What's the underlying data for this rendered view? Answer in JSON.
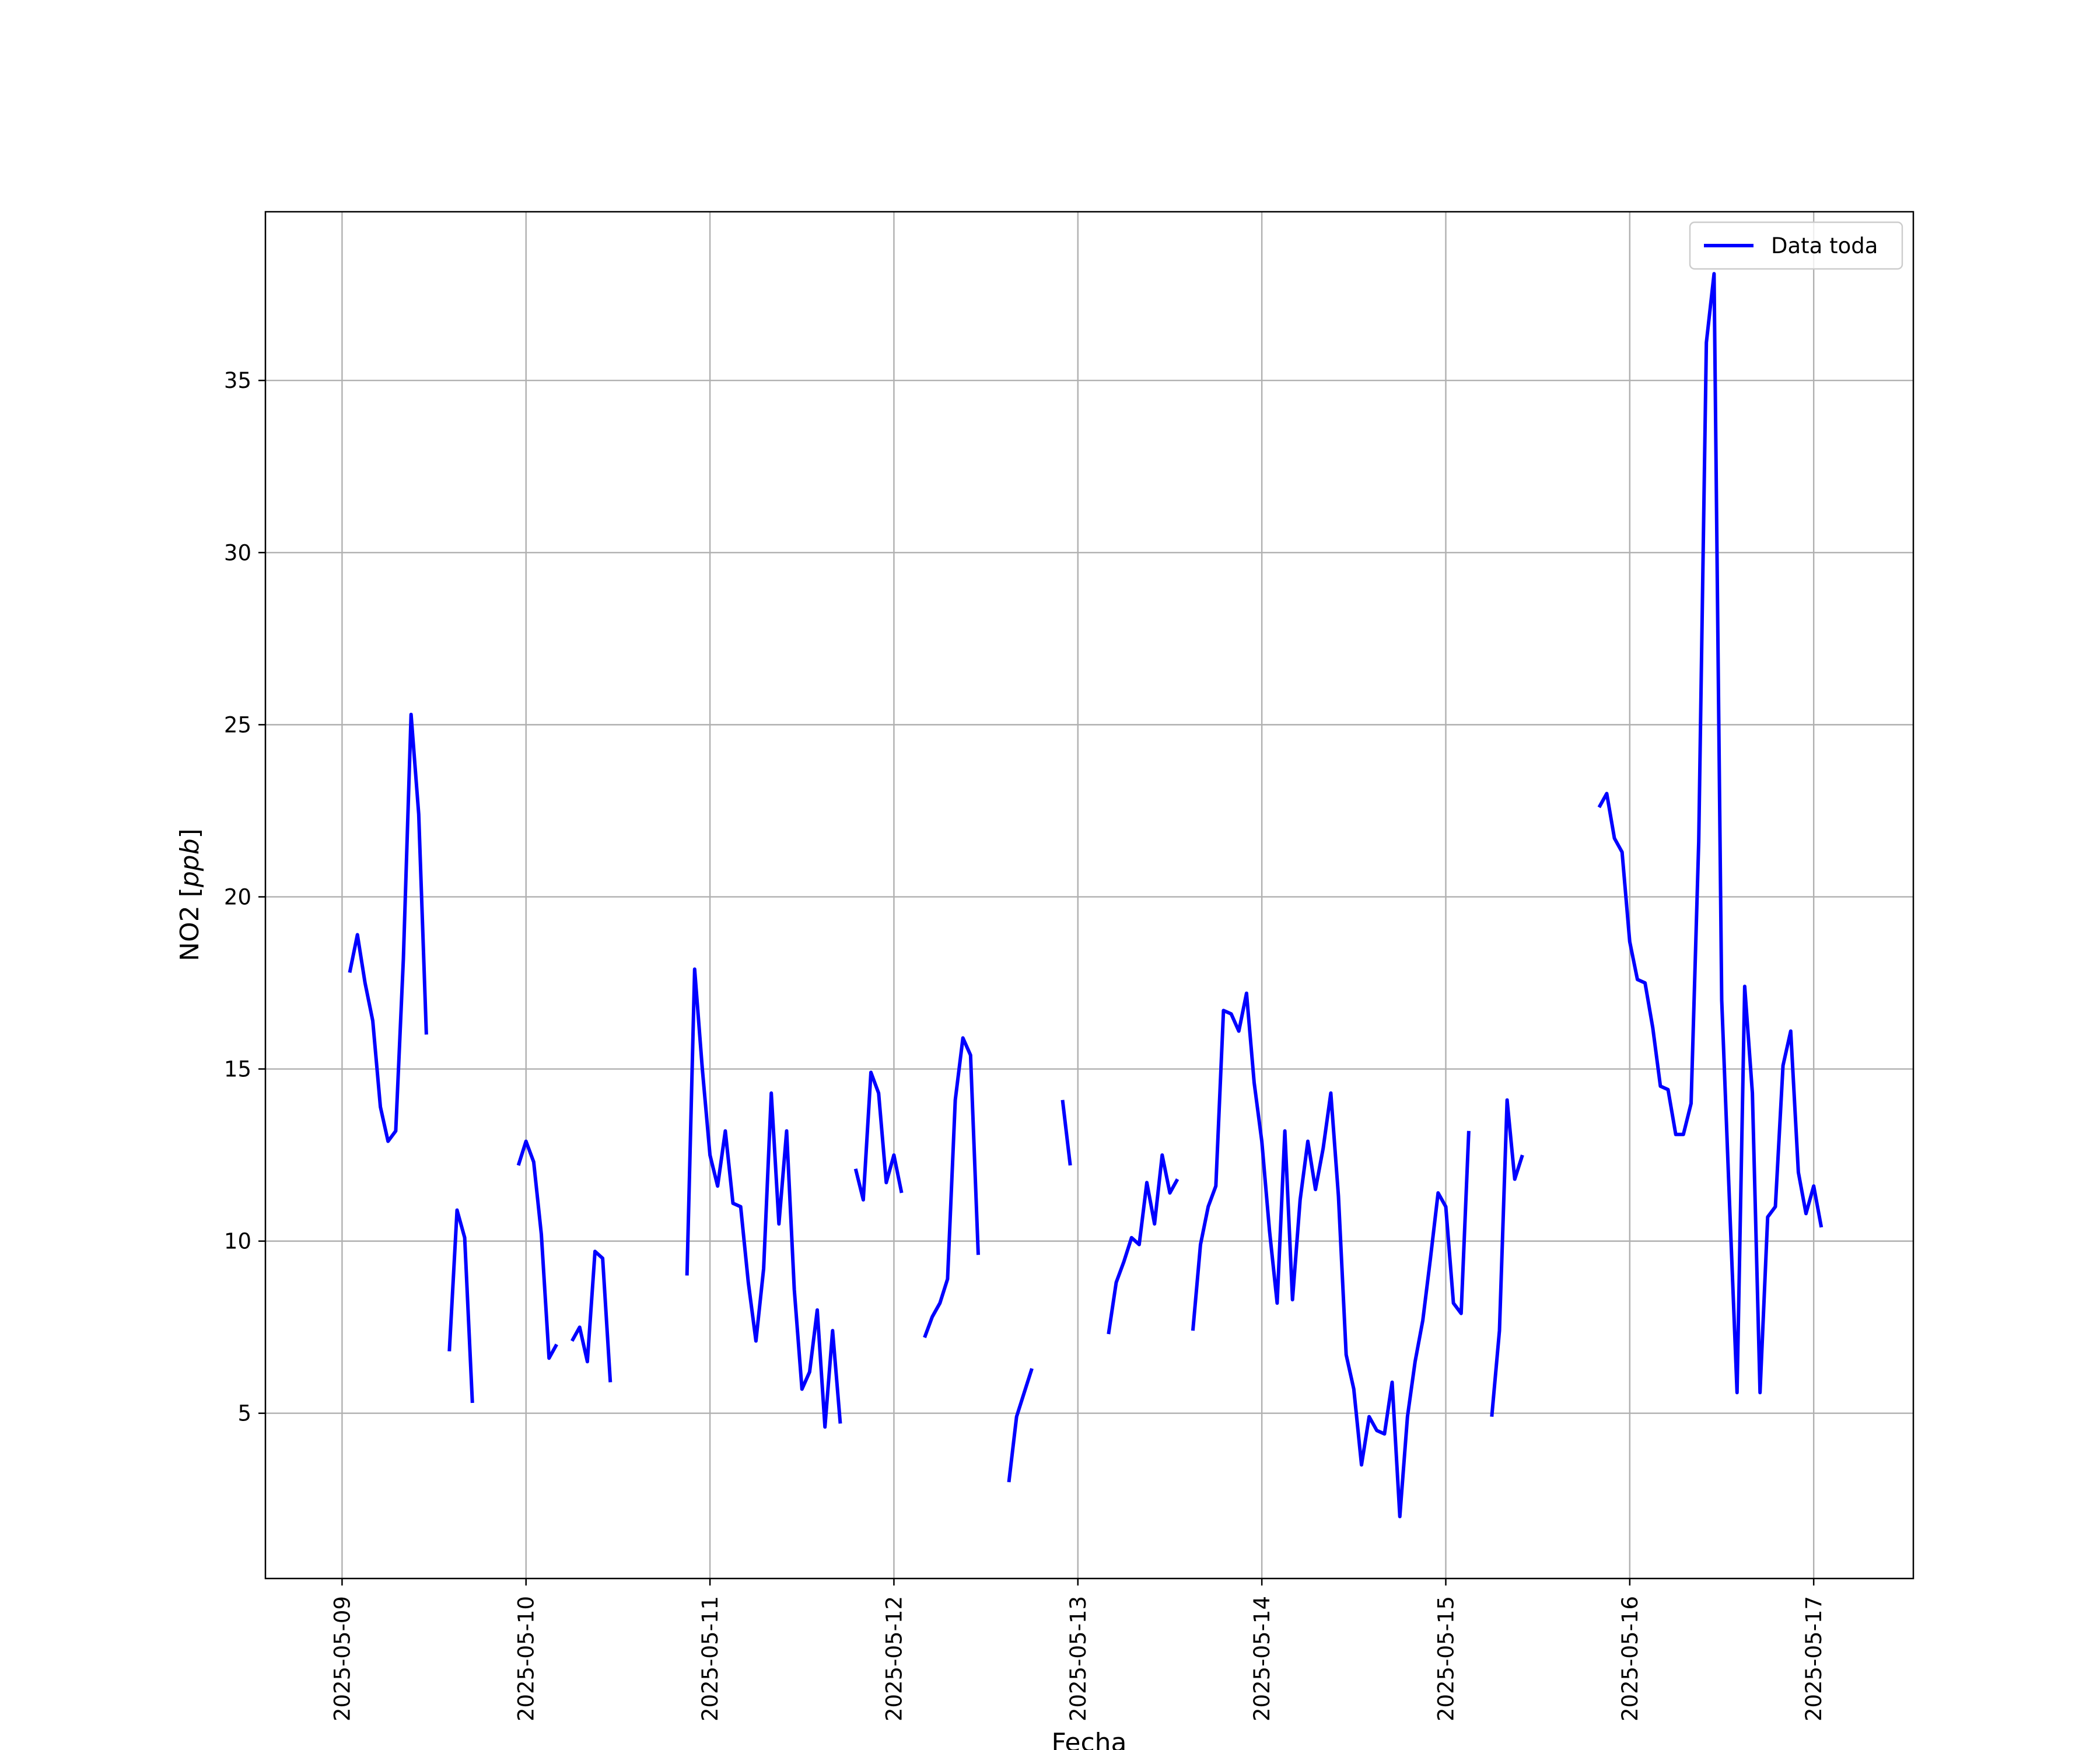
{
  "chart_data": {
    "type": "line",
    "xlabel": "Fecha",
    "ylabel": "NO2 [ppb]",
    "ylabel_main": "NO2 [",
    "ylabel_unit": "ppb",
    "ylabel_close": "]",
    "x_type": "date",
    "xlim": [
      "2025-05-08T14:00",
      "2025-05-17T13:00"
    ],
    "ylim": [
      0.2,
      39.9
    ],
    "x_ticks": [
      "2025-05-09",
      "2025-05-10",
      "2025-05-11",
      "2025-05-12",
      "2025-05-13",
      "2025-05-14",
      "2025-05-15",
      "2025-05-16",
      "2025-05-17"
    ],
    "y_ticks": [
      5,
      10,
      15,
      20,
      25,
      30,
      35
    ],
    "grid": true,
    "legend": {
      "position": "upper right",
      "entries": [
        "Data toda"
      ]
    },
    "series": [
      {
        "name": "Data toda",
        "color": "#0000ff",
        "segments": [
          [
            [
              "2025-05-09T01:00",
              17.8
            ],
            [
              "2025-05-09T02:00",
              18.9
            ],
            [
              "2025-05-09T03:00",
              17.5
            ],
            [
              "2025-05-09T04:00",
              16.4
            ],
            [
              "2025-05-09T05:00",
              13.9
            ],
            [
              "2025-05-09T06:00",
              12.9
            ],
            [
              "2025-05-09T07:00",
              13.2
            ],
            [
              "2025-05-09T08:00",
              18.2
            ],
            [
              "2025-05-09T09:00",
              25.3
            ],
            [
              "2025-05-09T10:00",
              22.4
            ],
            [
              "2025-05-09T11:00",
              16.0
            ]
          ],
          [
            [
              "2025-05-09T14:00",
              6.8
            ],
            [
              "2025-05-09T15:00",
              10.9
            ],
            [
              "2025-05-09T16:00",
              10.1
            ],
            [
              "2025-05-09T17:00",
              5.3
            ]
          ],
          [
            [
              "2025-05-09T23:00",
              12.2
            ],
            [
              "2025-05-10T00:00",
              12.9
            ],
            [
              "2025-05-10T01:00",
              12.3
            ],
            [
              "2025-05-10T02:00",
              10.2
            ],
            [
              "2025-05-10T03:00",
              6.6
            ],
            [
              "2025-05-10T04:00",
              7.0
            ]
          ],
          [
            [
              "2025-05-10T06:00",
              7.1
            ],
            [
              "2025-05-10T07:00",
              7.5
            ],
            [
              "2025-05-10T08:00",
              6.5
            ],
            [
              "2025-05-10T09:00",
              9.7
            ],
            [
              "2025-05-10T10:00",
              9.5
            ],
            [
              "2025-05-10T11:00",
              5.9
            ]
          ],
          [
            [
              "2025-05-10T21:00",
              9.0
            ],
            [
              "2025-05-10T22:00",
              17.9
            ],
            [
              "2025-05-10T23:00",
              15.0
            ],
            [
              "2025-05-11T00:00",
              12.5
            ],
            [
              "2025-05-11T01:00",
              11.6
            ],
            [
              "2025-05-11T02:00",
              13.2
            ],
            [
              "2025-05-11T03:00",
              11.1
            ],
            [
              "2025-05-11T04:00",
              11.0
            ],
            [
              "2025-05-11T05:00",
              8.8
            ],
            [
              "2025-05-11T06:00",
              7.1
            ],
            [
              "2025-05-11T07:00",
              9.2
            ],
            [
              "2025-05-11T08:00",
              14.3
            ],
            [
              "2025-05-11T09:00",
              10.5
            ],
            [
              "2025-05-11T10:00",
              13.2
            ],
            [
              "2025-05-11T11:00",
              8.6
            ],
            [
              "2025-05-11T12:00",
              5.7
            ],
            [
              "2025-05-11T13:00",
              6.2
            ],
            [
              "2025-05-11T14:00",
              8.0
            ],
            [
              "2025-05-11T15:00",
              4.6
            ],
            [
              "2025-05-11T16:00",
              7.4
            ],
            [
              "2025-05-11T17:00",
              4.7
            ]
          ],
          [
            [
              "2025-05-11T19:00",
              12.1
            ],
            [
              "2025-05-11T20:00",
              11.2
            ],
            [
              "2025-05-11T21:00",
              14.9
            ],
            [
              "2025-05-11T22:00",
              14.3
            ],
            [
              "2025-05-11T23:00",
              11.7
            ],
            [
              "2025-05-12T00:00",
              12.5
            ],
            [
              "2025-05-12T01:00",
              11.4
            ]
          ],
          [
            [
              "2025-05-12T04:00",
              7.2
            ],
            [
              "2025-05-12T05:00",
              7.8
            ],
            [
              "2025-05-12T06:00",
              8.2
            ],
            [
              "2025-05-12T07:00",
              8.9
            ],
            [
              "2025-05-12T08:00",
              14.1
            ],
            [
              "2025-05-12T09:00",
              15.9
            ],
            [
              "2025-05-12T10:00",
              15.4
            ],
            [
              "2025-05-12T11:00",
              9.6
            ]
          ],
          [
            [
              "2025-05-12T15:00",
              3.0
            ],
            [
              "2025-05-12T16:00",
              4.9
            ],
            [
              "2025-05-12T17:00",
              5.6
            ],
            [
              "2025-05-12T18:00",
              6.3
            ]
          ],
          [
            [
              "2025-05-12T22:00",
              14.1
            ],
            [
              "2025-05-12T23:00",
              12.2
            ]
          ],
          [
            [
              "2025-05-13T04:00",
              7.3
            ],
            [
              "2025-05-13T05:00",
              8.8
            ],
            [
              "2025-05-13T06:00",
              9.4
            ],
            [
              "2025-05-13T07:00",
              10.1
            ],
            [
              "2025-05-13T08:00",
              9.9
            ],
            [
              "2025-05-13T09:00",
              11.7
            ],
            [
              "2025-05-13T10:00",
              10.5
            ],
            [
              "2025-05-13T11:00",
              12.5
            ],
            [
              "2025-05-13T12:00",
              11.4
            ],
            [
              "2025-05-13T13:00",
              11.8
            ]
          ],
          [
            [
              "2025-05-13T15:00",
              7.4
            ],
            [
              "2025-05-13T16:00",
              9.9
            ],
            [
              "2025-05-13T17:00",
              11.0
            ],
            [
              "2025-05-13T18:00",
              11.6
            ],
            [
              "2025-05-13T19:00",
              16.7
            ],
            [
              "2025-05-13T20:00",
              16.6
            ],
            [
              "2025-05-13T21:00",
              16.1
            ],
            [
              "2025-05-13T22:00",
              17.2
            ],
            [
              "2025-05-13T23:00",
              14.6
            ],
            [
              "2025-05-14T00:00",
              12.9
            ],
            [
              "2025-05-14T01:00",
              10.3
            ],
            [
              "2025-05-14T02:00",
              8.2
            ],
            [
              "2025-05-14T03:00",
              13.2
            ],
            [
              "2025-05-14T04:00",
              8.3
            ],
            [
              "2025-05-14T05:00",
              11.2
            ],
            [
              "2025-05-14T06:00",
              12.9
            ],
            [
              "2025-05-14T07:00",
              11.5
            ],
            [
              "2025-05-14T08:00",
              12.7
            ],
            [
              "2025-05-14T09:00",
              14.3
            ],
            [
              "2025-05-14T10:00",
              11.3
            ],
            [
              "2025-05-14T11:00",
              6.7
            ],
            [
              "2025-05-14T12:00",
              5.7
            ],
            [
              "2025-05-14T13:00",
              3.5
            ],
            [
              "2025-05-14T14:00",
              4.9
            ],
            [
              "2025-05-14T15:00",
              4.5
            ],
            [
              "2025-05-14T16:00",
              4.4
            ],
            [
              "2025-05-14T17:00",
              5.9
            ],
            [
              "2025-05-14T18:00",
              2.0
            ],
            [
              "2025-05-14T19:00",
              4.9
            ],
            [
              "2025-05-14T20:00",
              6.5
            ],
            [
              "2025-05-14T21:00",
              7.7
            ],
            [
              "2025-05-14T22:00",
              9.5
            ],
            [
              "2025-05-14T23:00",
              11.4
            ],
            [
              "2025-05-15T00:00",
              11.0
            ],
            [
              "2025-05-15T01:00",
              8.2
            ],
            [
              "2025-05-15T02:00",
              7.9
            ],
            [
              "2025-05-15T03:00",
              13.2
            ]
          ],
          [
            [
              "2025-05-15T06:00",
              4.9
            ],
            [
              "2025-05-15T07:00",
              7.4
            ],
            [
              "2025-05-15T08:00",
              14.1
            ],
            [
              "2025-05-15T09:00",
              11.8
            ],
            [
              "2025-05-15T10:00",
              12.5
            ]
          ],
          [
            [
              "2025-05-15T20:00",
              22.6
            ],
            [
              "2025-05-15T21:00",
              23.0
            ],
            [
              "2025-05-15T22:00",
              21.7
            ],
            [
              "2025-05-15T23:00",
              21.3
            ],
            [
              "2025-05-16T00:00",
              18.7
            ],
            [
              "2025-05-16T01:00",
              17.6
            ],
            [
              "2025-05-16T02:00",
              17.5
            ],
            [
              "2025-05-16T03:00",
              16.2
            ],
            [
              "2025-05-16T04:00",
              14.5
            ],
            [
              "2025-05-16T05:00",
              14.4
            ],
            [
              "2025-05-16T06:00",
              13.1
            ],
            [
              "2025-05-16T07:00",
              13.1
            ],
            [
              "2025-05-16T08:00",
              14.0
            ],
            [
              "2025-05-16T09:00",
              21.6
            ],
            [
              "2025-05-16T10:00",
              36.1
            ],
            [
              "2025-05-16T11:00",
              38.1
            ],
            [
              "2025-05-16T12:00",
              17.0
            ],
            [
              "2025-05-16T13:00",
              11.2
            ],
            [
              "2025-05-16T14:00",
              5.6
            ],
            [
              "2025-05-16T15:00",
              17.4
            ],
            [
              "2025-05-16T16:00",
              14.3
            ],
            [
              "2025-05-16T17:00",
              5.6
            ],
            [
              "2025-05-16T18:00",
              10.7
            ],
            [
              "2025-05-16T19:00",
              11.0
            ],
            [
              "2025-05-16T20:00",
              15.1
            ],
            [
              "2025-05-16T21:00",
              16.1
            ],
            [
              "2025-05-16T22:00",
              12.0
            ],
            [
              "2025-05-16T23:00",
              10.8
            ],
            [
              "2025-05-17T00:00",
              11.6
            ],
            [
              "2025-05-17T01:00",
              10.4
            ]
          ]
        ]
      }
    ]
  }
}
